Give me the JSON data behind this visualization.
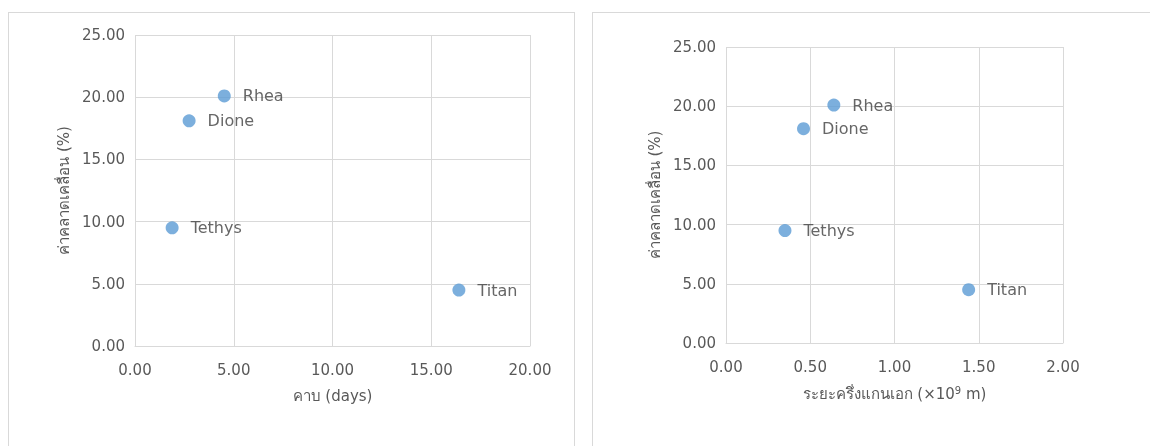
{
  "chart_data": [
    {
      "type": "scatter",
      "xlabel": "คาบ (days)",
      "ylabel": "ค่าคลาดเคลื่อน (%)",
      "marker": "circle",
      "grid": true,
      "series": [
        {
          "color": "#5b9bd5",
          "x": [
            4.52,
            2.74,
            1.88,
            16.4
          ],
          "values": [
            20.1,
            18.1,
            9.5,
            4.5
          ],
          "value_labels": [
            "Rhea",
            "Dione",
            "Tethys",
            "Titan"
          ]
        }
      ],
      "xlim": [
        0,
        20
      ],
      "xticks": [
        {
          "value": 0,
          "label": "0.00"
        },
        {
          "value": 5,
          "label": "5.00"
        },
        {
          "value": 10,
          "label": "10.00"
        },
        {
          "value": 15,
          "label": "15.00"
        },
        {
          "value": 20,
          "label": "20.00"
        }
      ],
      "ylim": [
        0,
        25
      ],
      "yticks": [
        {
          "value": 0,
          "label": "0.00"
        },
        {
          "value": 5,
          "label": "5.00"
        },
        {
          "value": 10,
          "label": "10.00"
        },
        {
          "value": 15,
          "label": "15.00"
        },
        {
          "value": 20,
          "label": "20.00"
        },
        {
          "value": 25,
          "label": "25.00"
        }
      ]
    },
    {
      "type": "scatter",
      "xlabel": "ระยะครึ่งแกนเอก (×10$^{9}$ m)",
      "ylabel": "ค่าคลาดเคลื่อน (%)",
      "marker": "circle",
      "grid": true,
      "series": [
        {
          "color": "#5b9bd5",
          "x": [
            0.64,
            0.46,
            0.35,
            1.44
          ],
          "values": [
            20.1,
            18.1,
            9.5,
            4.5
          ],
          "value_labels": [
            "Rhea",
            "Dione",
            "Tethys",
            "Titan"
          ]
        }
      ],
      "xlim": [
        0,
        2
      ],
      "xticks": [
        {
          "value": 0,
          "label": "0.00"
        },
        {
          "value": 0.5,
          "label": "0.50"
        },
        {
          "value": 1,
          "label": "1.00"
        },
        {
          "value": 1.5,
          "label": "1.50"
        },
        {
          "value": 2,
          "label": "2.00"
        }
      ],
      "ylim": [
        0,
        25
      ],
      "yticks": [
        {
          "value": 0,
          "label": "0.00"
        },
        {
          "value": 5,
          "label": "5.00"
        },
        {
          "value": 10,
          "label": "10.00"
        },
        {
          "value": 15,
          "label": "15.00"
        },
        {
          "value": 20,
          "label": "20.00"
        },
        {
          "value": 25,
          "label": "25.00"
        }
      ]
    }
  ]
}
